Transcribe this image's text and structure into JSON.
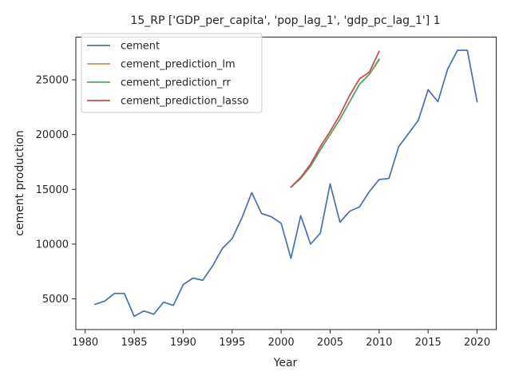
{
  "chart_data": {
    "type": "line",
    "title": "15_RP ['GDP_per_capita', 'pop_lag_1', 'gdp_pc_lag_1'] 1",
    "xlabel": "Year",
    "ylabel": "cement production",
    "xlim": [
      1979.05,
      2021.95
    ],
    "ylim": [
      2200,
      28900
    ],
    "xticks": [
      1980,
      1985,
      1990,
      1995,
      2000,
      2005,
      2010,
      2015,
      2020
    ],
    "yticks": [
      5000,
      10000,
      15000,
      20000,
      25000
    ],
    "grid": false,
    "legend_position": "upper-left",
    "series": [
      {
        "name": "cement",
        "color": "#4c72b0",
        "x": [
          1981,
          1982,
          1983,
          1984,
          1985,
          1986,
          1987,
          1988,
          1989,
          1990,
          1991,
          1992,
          1993,
          1994,
          1995,
          1996,
          1997,
          1998,
          1999,
          2000,
          2001,
          2002,
          2003,
          2004,
          2005,
          2006,
          2007,
          2008,
          2009,
          2010,
          2011,
          2012,
          2013,
          2014,
          2015,
          2016,
          2017,
          2018,
          2019,
          2020
        ],
        "values": [
          4500,
          4800,
          5500,
          5500,
          3400,
          3900,
          3600,
          4700,
          4400,
          6300,
          6900,
          6700,
          8000,
          9600,
          10500,
          12400,
          14700,
          12800,
          12500,
          11900,
          8700,
          12600,
          10000,
          11000,
          15500,
          12000,
          13000,
          13400,
          14800,
          15900,
          16000,
          18900,
          20100,
          21300,
          24100,
          23000,
          26000,
          27700,
          27700,
          23000
        ]
      },
      {
        "name": "cement_prediction_lm",
        "color": "#dd8452",
        "x": [
          2001,
          2002,
          2003,
          2004,
          2005,
          2006,
          2007,
          2008,
          2009,
          2010
        ],
        "values": [
          15200,
          16000,
          17100,
          18600,
          20000,
          21400,
          23000,
          24600,
          25500,
          26800
        ]
      },
      {
        "name": "cement_prediction_rr",
        "color": "#55a868",
        "x": [
          2001,
          2002,
          2003,
          2004,
          2005,
          2006,
          2007,
          2008,
          2009,
          2010
        ],
        "values": [
          15200,
          16000,
          17100,
          18600,
          20000,
          21400,
          23000,
          24600,
          25500,
          26900
        ]
      },
      {
        "name": "cement_prediction_lasso",
        "color": "#c44e52",
        "x": [
          2001,
          2002,
          2003,
          2004,
          2005,
          2006,
          2007,
          2008,
          2009,
          2010
        ],
        "values": [
          15200,
          16100,
          17300,
          18900,
          20300,
          21800,
          23600,
          25100,
          25700,
          27600
        ]
      }
    ]
  }
}
